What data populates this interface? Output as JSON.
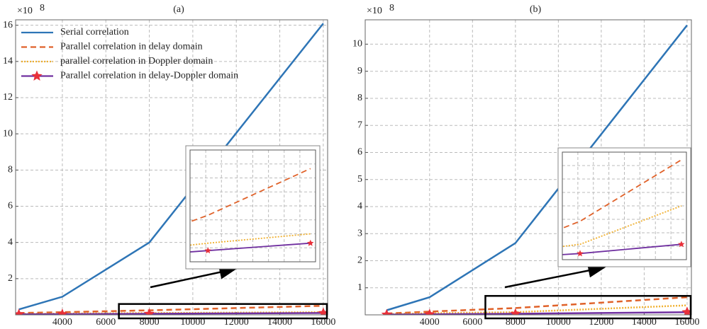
{
  "chart_data": [
    {
      "type": "line",
      "title": "(a)",
      "y_offset_label": "×10",
      "y_offset_exponent": "8",
      "x": [
        2000,
        4000,
        8000,
        16000
      ],
      "xlim": [
        1850,
        16200
      ],
      "ylim": [
        0,
        16.3
      ],
      "xticks": [
        4000,
        6000,
        8000,
        10000,
        12000,
        14000,
        16000
      ],
      "yticks": [
        2,
        4,
        6,
        8,
        10,
        12,
        14,
        16
      ],
      "grid": true,
      "legend": "upper left",
      "inset": {
        "xlim": [
          6600,
          16400
        ],
        "ylim": [
          0,
          0.6
        ]
      },
      "series": [
        {
          "name": "Serial correlation",
          "color": "#2e75b6",
          "style": "solid",
          "values": [
            0.3,
            1.0,
            4.0,
            16.1
          ]
        },
        {
          "name": "Parallel correlation in delay domain",
          "color": "#e0622a",
          "style": "dashed",
          "values": [
            0.1,
            0.15,
            0.25,
            0.5
          ]
        },
        {
          "name": "parallel correlation in Doppler domain",
          "color": "#f0b030",
          "style": "dotted",
          "values": [
            0.05,
            0.07,
            0.1,
            0.15
          ]
        },
        {
          "name": "Parallel correlation in delay-Doppler domain",
          "color": "#7030a0",
          "style": "solid",
          "marker": "star",
          "marker_color": "#e8303a",
          "values": [
            0.03,
            0.04,
            0.06,
            0.1
          ]
        }
      ]
    },
    {
      "type": "line",
      "title": "(b)",
      "y_offset_label": "×10",
      "y_offset_exponent": "8",
      "x": [
        2000,
        4000,
        8000,
        16000
      ],
      "xlim": [
        1000,
        16200
      ],
      "ylim": [
        0,
        10.9
      ],
      "xticks": [
        4000,
        6000,
        8000,
        10000,
        12000,
        14000,
        16000
      ],
      "yticks": [
        1,
        2,
        3,
        4,
        5,
        6,
        7,
        8,
        9,
        10
      ],
      "grid": true,
      "inset": {
        "xlim": [
          6600,
          16400
        ],
        "ylim": [
          0,
          0.7
        ]
      },
      "series": [
        {
          "color": "#2e75b6",
          "style": "solid",
          "values": [
            0.17,
            0.65,
            2.65,
            10.7
          ]
        },
        {
          "color": "#e0622a",
          "style": "dashed",
          "values": [
            0.05,
            0.12,
            0.25,
            0.65
          ]
        },
        {
          "color": "#f0b030",
          "style": "dotted",
          "values": [
            0.03,
            0.06,
            0.1,
            0.35
          ]
        },
        {
          "color": "#7030a0",
          "style": "solid",
          "marker": "star",
          "marker_color": "#e8303a",
          "values": [
            0.01,
            0.02,
            0.04,
            0.1
          ]
        }
      ]
    }
  ]
}
